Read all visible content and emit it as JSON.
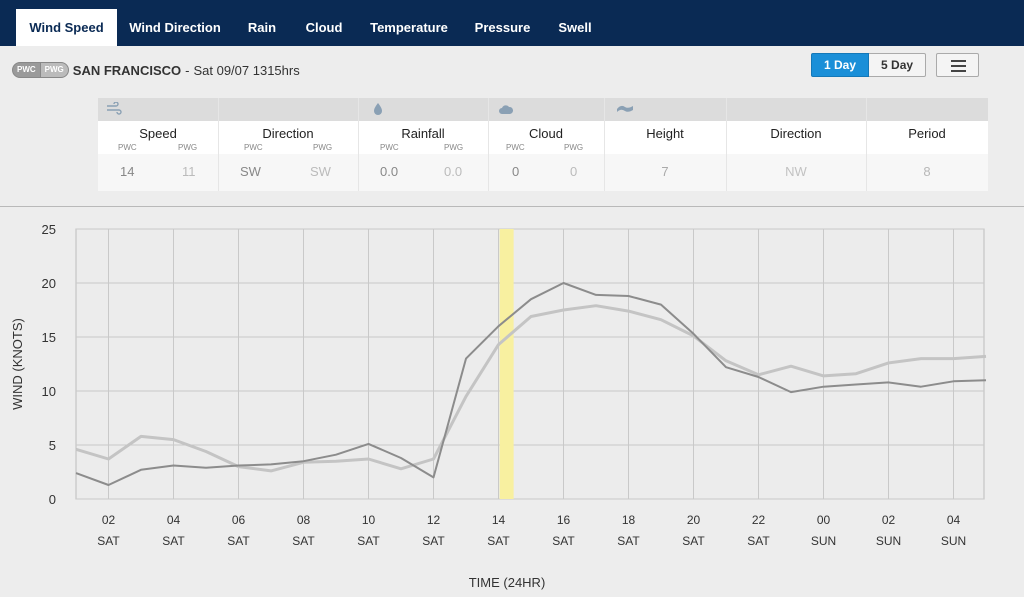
{
  "tabs": [
    {
      "label": "Wind Speed",
      "active": true
    },
    {
      "label": "Wind Direction",
      "active": false
    },
    {
      "label": "Rain",
      "active": false
    },
    {
      "label": "Cloud",
      "active": false
    },
    {
      "label": "Temperature",
      "active": false
    },
    {
      "label": "Pressure",
      "active": false
    },
    {
      "label": "Swell",
      "active": false
    }
  ],
  "location": {
    "badge1": "PWC",
    "badge2": "PWG",
    "name": "SAN FRANCISCO",
    "separator": "-",
    "datetime": "Sat 09/07 1315hrs"
  },
  "range_buttons": {
    "one_day": "1 Day",
    "five_day": "5 Day",
    "selected": "1 Day"
  },
  "summary": {
    "icons": [
      "wind-icon",
      "rain-drop-icon",
      "cloud-icon",
      "swell-wave-icon"
    ],
    "speed": {
      "label": "Speed",
      "sub1": "PWC",
      "sub2": "PWG",
      "pwc": "14",
      "pwg": "11"
    },
    "direction": {
      "label": "Direction",
      "sub1": "PWC",
      "sub2": "PWG",
      "pwc": "SW",
      "pwg": "SW"
    },
    "rainfall": {
      "label": "Rainfall",
      "sub1": "PWC",
      "sub2": "PWG",
      "pwc": "0.0",
      "pwg": "0.0"
    },
    "cloud": {
      "label": "Cloud",
      "sub1": "PWC",
      "sub2": "PWG",
      "pwc": "0",
      "pwg": "0"
    },
    "height": {
      "label": "Height",
      "value": "7"
    },
    "swell_direction": {
      "label": "Direction",
      "value": "NW"
    },
    "period": {
      "label": "Period",
      "value": "8"
    }
  },
  "colors": {
    "nav_bg": "#0a2a54",
    "accent": "#1a8fd8",
    "pwc_line": "#8c8c8c",
    "pwg_line": "#c4c4c4",
    "now_marker": "#f8f0a0"
  },
  "chart_data": {
    "type": "line",
    "xlabel": "TIME (24HR)",
    "ylabel": "WIND (KNOTS)",
    "ylim": [
      0,
      25
    ],
    "yticks": [
      0,
      5,
      10,
      15,
      20,
      25
    ],
    "grid": true,
    "x_ticks": [
      {
        "hour": "02",
        "day": "SAT"
      },
      {
        "hour": "04",
        "day": "SAT"
      },
      {
        "hour": "06",
        "day": "SAT"
      },
      {
        "hour": "08",
        "day": "SAT"
      },
      {
        "hour": "10",
        "day": "SAT"
      },
      {
        "hour": "12",
        "day": "SAT"
      },
      {
        "hour": "14",
        "day": "SAT"
      },
      {
        "hour": "16",
        "day": "SAT"
      },
      {
        "hour": "18",
        "day": "SAT"
      },
      {
        "hour": "20",
        "day": "SAT"
      },
      {
        "hour": "22",
        "day": "SAT"
      },
      {
        "hour": "00",
        "day": "SUN"
      },
      {
        "hour": "02",
        "day": "SUN"
      },
      {
        "hour": "04",
        "day": "SUN"
      }
    ],
    "now_marker_hour": 13.25,
    "series": [
      {
        "name": "PWC",
        "x": [
          0,
          1,
          2,
          3,
          4,
          5,
          6,
          7,
          8,
          9,
          10,
          11,
          12,
          13,
          14,
          15,
          16,
          17,
          18,
          19,
          20,
          21,
          22,
          23,
          24,
          25,
          26,
          27,
          28
        ],
        "values": [
          2.4,
          1.3,
          2.7,
          3.1,
          2.9,
          3.1,
          3.2,
          3.5,
          4.1,
          5.1,
          3.8,
          2.0,
          13.0,
          16.0,
          18.5,
          20.0,
          18.9,
          18.8,
          18.0,
          15.3,
          12.2,
          11.3,
          9.9,
          10.4,
          10.6,
          10.8,
          10.4,
          10.9,
          11.0
        ]
      },
      {
        "name": "PWG",
        "x": [
          0,
          1,
          2,
          3,
          4,
          5,
          6,
          7,
          8,
          9,
          10,
          11,
          12,
          13,
          14,
          15,
          16,
          17,
          18,
          19,
          20,
          21,
          22,
          23,
          24,
          25,
          26,
          27,
          28
        ],
        "values": [
          4.6,
          3.7,
          5.8,
          5.5,
          4.4,
          3.0,
          2.6,
          3.4,
          3.5,
          3.7,
          2.8,
          3.7,
          9.5,
          14.3,
          16.9,
          17.5,
          17.9,
          17.4,
          16.6,
          15.1,
          12.8,
          11.5,
          12.3,
          11.4,
          11.6,
          12.6,
          13.0,
          13.0,
          13.2
        ]
      }
    ]
  }
}
